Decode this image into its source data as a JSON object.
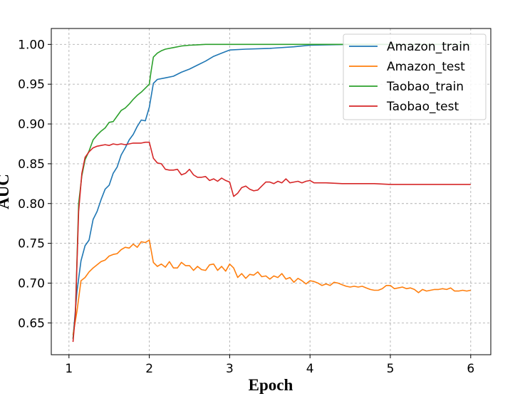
{
  "chart_data": {
    "type": "line",
    "xlabel": "Epoch",
    "ylabel": "AUC",
    "xlim": [
      0.78,
      6.25
    ],
    "ylim": [
      0.61,
      1.02
    ],
    "xticks": [
      1,
      2,
      3,
      4,
      5,
      6
    ],
    "xtick_labels": [
      "1",
      "2",
      "3",
      "4",
      "5",
      "6"
    ],
    "yticks": [
      0.65,
      0.7,
      0.75,
      0.8,
      0.85,
      0.9,
      0.95,
      1.0
    ],
    "ytick_labels": [
      "0.65",
      "0.70",
      "0.75",
      "0.80",
      "0.85",
      "0.90",
      "0.95",
      "1.00"
    ],
    "grid": true,
    "legend_position": "top-right",
    "series": [
      {
        "name": "Amazon_train",
        "color": "#1f77b4",
        "x": [
          1.05,
          1.1,
          1.15,
          1.2,
          1.25,
          1.3,
          1.35,
          1.4,
          1.45,
          1.5,
          1.55,
          1.6,
          1.65,
          1.7,
          1.75,
          1.8,
          1.85,
          1.9,
          1.95,
          2.0,
          2.05,
          2.1,
          2.2,
          2.3,
          2.4,
          2.5,
          2.6,
          2.7,
          2.8,
          2.9,
          3.0,
          3.2,
          3.5,
          3.8,
          4.0,
          4.5,
          5.0,
          5.5,
          6.0
        ],
        "y": [
          0.63,
          0.69,
          0.728,
          0.747,
          0.754,
          0.78,
          0.79,
          0.805,
          0.818,
          0.823,
          0.838,
          0.846,
          0.861,
          0.87,
          0.88,
          0.887,
          0.897,
          0.905,
          0.904,
          0.921,
          0.951,
          0.956,
          0.958,
          0.96,
          0.965,
          0.969,
          0.974,
          0.979,
          0.985,
          0.989,
          0.993,
          0.994,
          0.995,
          0.997,
          0.999,
          1.0,
          1.0,
          1.0,
          1.0
        ]
      },
      {
        "name": "Amazon_test",
        "color": "#ff7f0e",
        "x": [
          1.05,
          1.1,
          1.15,
          1.2,
          1.25,
          1.3,
          1.35,
          1.4,
          1.45,
          1.5,
          1.55,
          1.6,
          1.65,
          1.7,
          1.75,
          1.8,
          1.85,
          1.9,
          1.95,
          2.0,
          2.05,
          2.1,
          2.15,
          2.2,
          2.25,
          2.3,
          2.35,
          2.4,
          2.45,
          2.5,
          2.55,
          2.6,
          2.65,
          2.7,
          2.75,
          2.8,
          2.85,
          2.9,
          2.95,
          3.0,
          3.05,
          3.1,
          3.15,
          3.2,
          3.25,
          3.3,
          3.35,
          3.4,
          3.45,
          3.5,
          3.55,
          3.6,
          3.65,
          3.7,
          3.75,
          3.8,
          3.85,
          3.9,
          3.95,
          4.0,
          4.05,
          4.1,
          4.15,
          4.2,
          4.25,
          4.3,
          4.35,
          4.4,
          4.45,
          4.5,
          4.55,
          4.6,
          4.65,
          4.7,
          4.75,
          4.8,
          4.85,
          4.9,
          4.95,
          5.0,
          5.05,
          5.1,
          5.15,
          5.2,
          5.25,
          5.3,
          5.35,
          5.4,
          5.45,
          5.5,
          5.55,
          5.6,
          5.65,
          5.7,
          5.75,
          5.8,
          5.85,
          5.9,
          5.95,
          6.0
        ],
        "y": [
          0.635,
          0.665,
          0.703,
          0.707,
          0.714,
          0.719,
          0.723,
          0.727,
          0.729,
          0.734,
          0.736,
          0.737,
          0.742,
          0.745,
          0.744,
          0.749,
          0.745,
          0.752,
          0.751,
          0.754,
          0.726,
          0.721,
          0.724,
          0.72,
          0.727,
          0.719,
          0.719,
          0.726,
          0.722,
          0.722,
          0.716,
          0.721,
          0.717,
          0.716,
          0.723,
          0.724,
          0.716,
          0.721,
          0.715,
          0.724,
          0.719,
          0.707,
          0.712,
          0.706,
          0.711,
          0.71,
          0.714,
          0.708,
          0.709,
          0.705,
          0.709,
          0.707,
          0.712,
          0.705,
          0.707,
          0.701,
          0.706,
          0.703,
          0.699,
          0.703,
          0.702,
          0.7,
          0.697,
          0.699,
          0.697,
          0.701,
          0.7,
          0.698,
          0.696,
          0.695,
          0.696,
          0.695,
          0.696,
          0.694,
          0.692,
          0.691,
          0.691,
          0.693,
          0.697,
          0.697,
          0.693,
          0.694,
          0.695,
          0.693,
          0.694,
          0.692,
          0.688,
          0.692,
          0.69,
          0.691,
          0.692,
          0.692,
          0.693,
          0.692,
          0.694,
          0.69,
          0.69,
          0.691,
          0.69,
          0.691
        ]
      },
      {
        "name": "Taobao_train",
        "color": "#2ca02c",
        "x": [
          1.05,
          1.08,
          1.12,
          1.16,
          1.2,
          1.25,
          1.3,
          1.35,
          1.4,
          1.45,
          1.5,
          1.55,
          1.6,
          1.65,
          1.7,
          1.75,
          1.8,
          1.85,
          1.9,
          1.95,
          2.0,
          2.02,
          2.05,
          2.1,
          2.15,
          2.2,
          2.3,
          2.4,
          2.5,
          2.6,
          2.7,
          2.8,
          3.0,
          3.3,
          3.6,
          4.0,
          4.5,
          5.0,
          5.5,
          6.0
        ],
        "y": [
          0.63,
          0.66,
          0.8,
          0.835,
          0.855,
          0.866,
          0.88,
          0.886,
          0.891,
          0.895,
          0.902,
          0.903,
          0.91,
          0.917,
          0.92,
          0.925,
          0.931,
          0.936,
          0.94,
          0.945,
          0.95,
          0.965,
          0.984,
          0.989,
          0.992,
          0.994,
          0.996,
          0.998,
          0.999,
          0.9995,
          1.0,
          1.0,
          1.0,
          1.0,
          1.0,
          1.0,
          1.0,
          1.0,
          1.0,
          1.0
        ]
      },
      {
        "name": "Taobao_test",
        "color": "#d62728",
        "x": [
          1.05,
          1.08,
          1.12,
          1.16,
          1.2,
          1.25,
          1.3,
          1.35,
          1.4,
          1.45,
          1.5,
          1.55,
          1.6,
          1.65,
          1.7,
          1.75,
          1.8,
          1.85,
          1.9,
          1.95,
          2.0,
          2.05,
          2.1,
          2.15,
          2.2,
          2.25,
          2.3,
          2.35,
          2.4,
          2.45,
          2.5,
          2.55,
          2.6,
          2.65,
          2.7,
          2.75,
          2.8,
          2.85,
          2.9,
          2.95,
          3.0,
          3.05,
          3.1,
          3.15,
          3.2,
          3.25,
          3.3,
          3.35,
          3.4,
          3.45,
          3.5,
          3.55,
          3.6,
          3.65,
          3.7,
          3.75,
          3.8,
          3.85,
          3.9,
          3.95,
          4.0,
          4.05,
          4.1,
          4.2,
          4.4,
          4.6,
          4.8,
          5.0,
          5.2,
          5.4,
          5.6,
          5.8,
          6.0
        ],
        "y": [
          0.626,
          0.66,
          0.79,
          0.838,
          0.858,
          0.865,
          0.87,
          0.872,
          0.873,
          0.874,
          0.873,
          0.875,
          0.874,
          0.875,
          0.874,
          0.875,
          0.876,
          0.876,
          0.876,
          0.877,
          0.877,
          0.857,
          0.851,
          0.85,
          0.843,
          0.842,
          0.842,
          0.843,
          0.836,
          0.838,
          0.843,
          0.836,
          0.833,
          0.833,
          0.834,
          0.829,
          0.831,
          0.828,
          0.832,
          0.829,
          0.827,
          0.809,
          0.813,
          0.82,
          0.822,
          0.818,
          0.816,
          0.817,
          0.822,
          0.827,
          0.827,
          0.825,
          0.828,
          0.826,
          0.831,
          0.826,
          0.827,
          0.828,
          0.826,
          0.828,
          0.829,
          0.826,
          0.826,
          0.826,
          0.825,
          0.825,
          0.825,
          0.824,
          0.824,
          0.824,
          0.824,
          0.824,
          0.824
        ]
      }
    ]
  }
}
